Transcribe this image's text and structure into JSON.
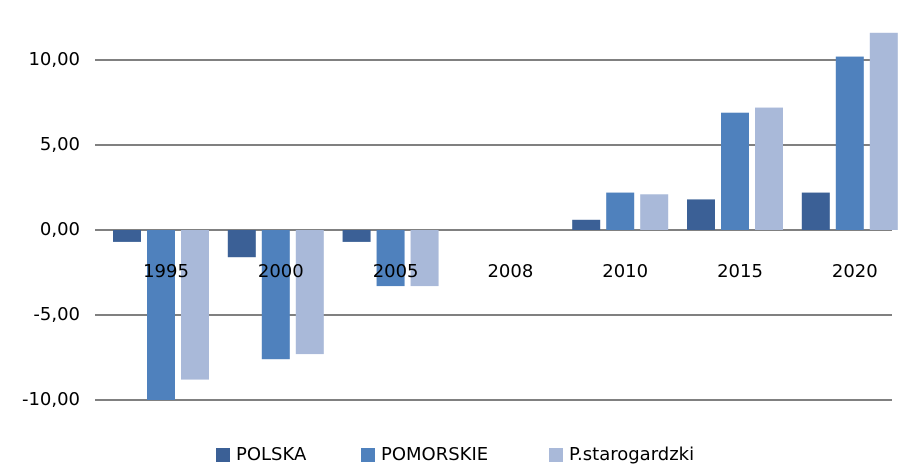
{
  "chart_data": {
    "type": "bar",
    "categories": [
      "1995",
      "2000",
      "2005",
      "2008",
      "2010",
      "2015",
      "2020"
    ],
    "series": [
      {
        "name": "POLSKA",
        "color": "#3b6096",
        "values": [
          -0.7,
          -1.6,
          -0.7,
          null,
          0.6,
          1.8,
          2.2
        ]
      },
      {
        "name": "POMORSKIE",
        "color": "#4f81bd",
        "values": [
          -10.0,
          -7.6,
          -3.3,
          null,
          2.2,
          6.9,
          10.2
        ]
      },
      {
        "name": "P.starogardzki",
        "color": "#a9b9d9",
        "values": [
          -8.8,
          -7.3,
          -3.3,
          null,
          2.1,
          7.2,
          11.6
        ]
      }
    ],
    "ylim": [
      -10,
      12
    ],
    "yticks": [
      {
        "value": -10,
        "label": "-10,00"
      },
      {
        "value": -5,
        "label": "-5,00"
      },
      {
        "value": 0,
        "label": "0,00"
      },
      {
        "value": 5,
        "label": "5,00"
      },
      {
        "value": 10,
        "label": "10,00"
      }
    ],
    "grid": true,
    "legend": "bottom"
  }
}
